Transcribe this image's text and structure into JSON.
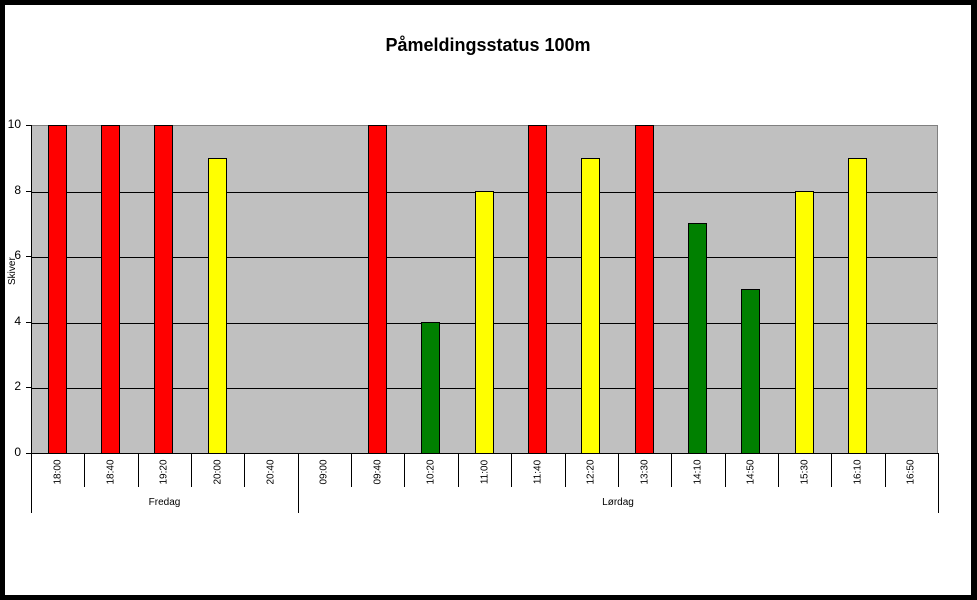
{
  "chart_data": {
    "type": "bar",
    "title": "Påmeldingsstatus 100m",
    "xlabel": "",
    "ylabel": "Skiver",
    "ylim": [
      0,
      10
    ],
    "yticks": [
      0,
      2,
      4,
      6,
      8,
      10
    ],
    "grid": true,
    "legend": null,
    "categories": [
      "18:00",
      "18:40",
      "19:20",
      "20:00",
      "20:40",
      "09:00",
      "09:40",
      "10:20",
      "11:00",
      "11:40",
      "12:20",
      "13:30",
      "14:10",
      "14:50",
      "15:30",
      "16:10",
      "16:50"
    ],
    "groups": [
      {
        "label": "Fredag",
        "categories": [
          "18:00",
          "18:40",
          "19:20",
          "20:00",
          "20:40"
        ]
      },
      {
        "label": "Lørdag",
        "categories": [
          "09:00",
          "09:40",
          "10:20",
          "11:00",
          "11:40",
          "12:20",
          "13:30",
          "14:10",
          "14:50",
          "15:30",
          "16:10",
          "16:50"
        ]
      }
    ],
    "values": [
      10,
      10,
      10,
      9,
      null,
      null,
      10,
      4,
      8,
      10,
      9,
      10,
      7,
      5,
      8,
      9,
      null
    ],
    "bar_colors": [
      "#ff0000",
      "#ff0000",
      "#ff0000",
      "#ffff00",
      null,
      null,
      "#ff0000",
      "#008000",
      "#ffff00",
      "#ff0000",
      "#ffff00",
      "#ff0000",
      "#008000",
      "#008000",
      "#ffff00",
      "#ffff00",
      null
    ],
    "colors": {
      "full": "#ff0000",
      "nearly_full": "#ffff00",
      "available": "#008000",
      "plot_background": "#c0c0c0"
    }
  }
}
